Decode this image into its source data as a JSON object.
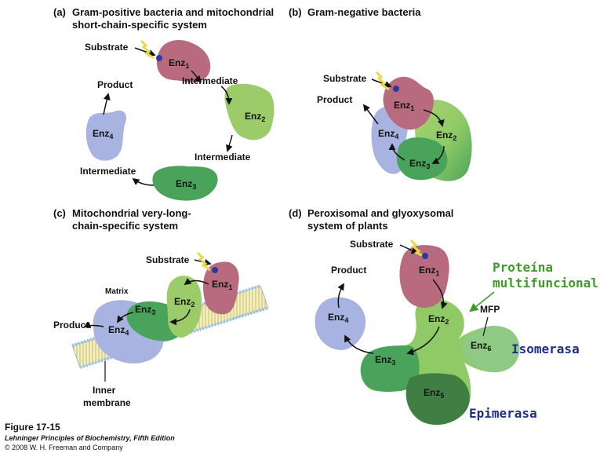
{
  "panel_a": {
    "letter": "(a)",
    "title_line1": "Gram-positive bacteria and mitochondrial",
    "title_line2": "short-chain-specific system",
    "substrate": "Substrate",
    "product": "Product",
    "intermediate": "Intermediate",
    "enz": [
      "Enz",
      "Enz",
      "Enz",
      "Enz"
    ],
    "subs": [
      "1",
      "2",
      "3",
      "4"
    ]
  },
  "panel_b": {
    "letter": "(b)",
    "title_line1": "Gram-negative bacteria",
    "substrate": "Substrate",
    "product": "Product",
    "enz": [
      "Enz",
      "Enz",
      "Enz",
      "Enz"
    ],
    "subs": [
      "1",
      "2",
      "3",
      "4"
    ]
  },
  "panel_c": {
    "letter": "(c)",
    "title_line1": "Mitochondrial very-long-",
    "title_line2": "chain-specific system",
    "substrate": "Substrate",
    "product": "Product",
    "matrix": "Matrix",
    "inner1": "Inner",
    "inner2": "membrane",
    "enz": [
      "Enz",
      "Enz",
      "Enz",
      "Enz"
    ],
    "subs": [
      "1",
      "2",
      "3",
      "4"
    ]
  },
  "panel_d": {
    "letter": "(d)",
    "title_line1": "Peroxisomal and glyoxysomal",
    "title_line2": "system of plants",
    "substrate": "Substrate",
    "product": "Product",
    "mfp": "MFP",
    "enz": [
      "Enz",
      "Enz",
      "Enz",
      "Enz",
      "Enz",
      "Enz"
    ],
    "subs": [
      "1",
      "2",
      "3",
      "4",
      "5",
      "6"
    ]
  },
  "annotations": {
    "proteina1": "Proteína",
    "proteina2": "multifuncional",
    "isomerasa": "Isomerasa",
    "epimerasa": "Epimerasa"
  },
  "footer": {
    "figure": "Figure 17-15",
    "book": "Lehninger Principles of Biochemistry, Fifth Edition",
    "copyright": "© 2008 W. H. Freeman and Company"
  },
  "colors": {
    "enz1": "#b86b7e",
    "enz2": "#9ccc6a",
    "enz3": "#4aa35a",
    "enz4": "#a9b3e2",
    "enz5": "#3f7f44",
    "enz6": "#8fca84",
    "annotation_green": "#3f9a2a",
    "annotation_blue": "#1f2f88",
    "substrate_dot": "#2b3a9a",
    "substrate_spark": "#e8d84a"
  }
}
